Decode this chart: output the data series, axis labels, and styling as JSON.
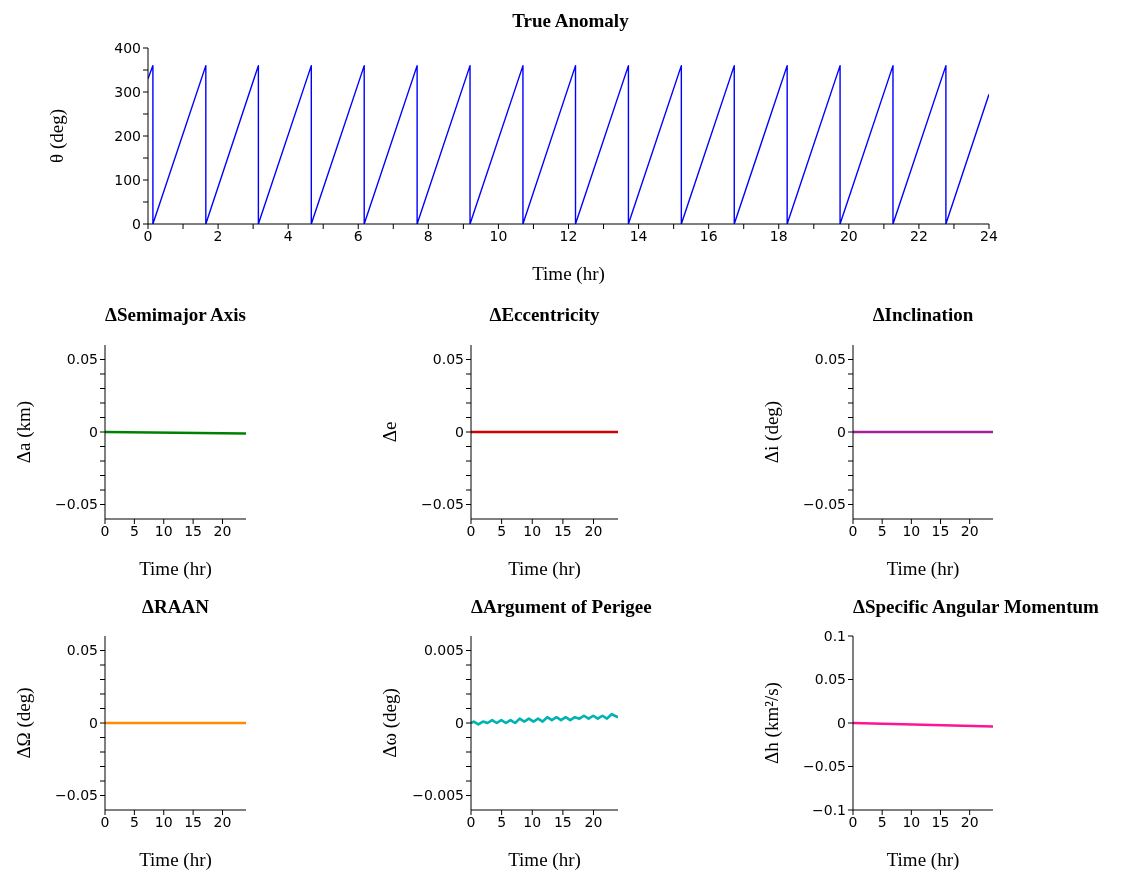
{
  "chart_data": [
    {
      "type": "line",
      "title": "True Anomaly",
      "xlabel": "Time (hr)",
      "ylabel": "θ (deg)",
      "marker": "none",
      "line_style": "solid",
      "series": [
        {
          "color": "#0000ff",
          "x": [
            0,
            0.14,
            0.14,
            1.65,
            1.65,
            3.15,
            3.15,
            4.66,
            4.66,
            6.17,
            6.17,
            7.68,
            7.68,
            9.19,
            9.19,
            10.7,
            10.7,
            12.2,
            12.2,
            13.71,
            13.71,
            15.22,
            15.22,
            16.73,
            16.73,
            18.24,
            18.24,
            19.75,
            19.75,
            21.26,
            21.26,
            22.77,
            22.77,
            24
          ],
          "values": [
            330,
            360,
            0,
            360,
            0,
            360,
            0,
            360,
            0,
            360,
            0,
            360,
            0,
            360,
            0,
            360,
            0,
            360,
            0,
            360,
            0,
            360,
            0,
            360,
            0,
            360,
            0,
            360,
            0,
            360,
            0,
            360,
            0,
            295
          ]
        }
      ],
      "xlim": [
        0,
        24
      ],
      "xticks": [
        0,
        {
          "value": 1,
          "label": null
        },
        2,
        {
          "value": 3,
          "label": null
        },
        4,
        {
          "value": 5,
          "label": null
        },
        6,
        {
          "value": 7,
          "label": null
        },
        8,
        {
          "value": 9,
          "label": null
        },
        10,
        {
          "value": 11,
          "label": null
        },
        12,
        {
          "value": 13,
          "label": null
        },
        14,
        {
          "value": 15,
          "label": null
        },
        16,
        {
          "value": 17,
          "label": null
        },
        18,
        {
          "value": 19,
          "label": null
        },
        20,
        {
          "value": 21,
          "label": null
        },
        22,
        {
          "value": 23,
          "label": null
        },
        24
      ],
      "ylim": [
        0,
        400
      ],
      "yticks": [
        0,
        {
          "value": 50,
          "label": null
        },
        100,
        {
          "value": 150,
          "label": null
        },
        200,
        {
          "value": 250,
          "label": null
        },
        300,
        {
          "value": 350,
          "label": null
        },
        400
      ]
    },
    {
      "type": "line",
      "title": "ΔSemimajor Axis",
      "xlabel": "Time (hr)",
      "ylabel": "Δa (km)",
      "marker": "none",
      "line_style": "solid",
      "series": [
        {
          "color": "#008000",
          "x": [
            0,
            24
          ],
          "values": [
            0,
            -0.001
          ]
        }
      ],
      "xlim": [
        0,
        24
      ],
      "xticks": [
        0,
        5,
        10,
        15,
        20
      ],
      "ylim": [
        -0.06,
        0.06
      ],
      "yticks": [
        {
          "value": -0.05,
          "label": "−0.05"
        },
        {
          "value": -0.04,
          "label": null
        },
        {
          "value": -0.03,
          "label": null
        },
        {
          "value": -0.02,
          "label": null
        },
        {
          "value": -0.01,
          "label": null
        },
        0,
        {
          "value": 0.01,
          "label": null
        },
        {
          "value": 0.02,
          "label": null
        },
        {
          "value": 0.03,
          "label": null
        },
        {
          "value": 0.04,
          "label": null
        },
        0.05
      ]
    },
    {
      "type": "line",
      "title": "ΔEccentricity",
      "xlabel": "Time (hr)",
      "ylabel": "Δe",
      "marker": "none",
      "line_style": "solid",
      "series": [
        {
          "color": "#d40000",
          "x": [
            0,
            24
          ],
          "values": [
            0,
            0
          ]
        }
      ],
      "xlim": [
        0,
        24
      ],
      "xticks": [
        0,
        5,
        10,
        15,
        20
      ],
      "ylim": [
        -0.06,
        0.06
      ],
      "yticks": [
        {
          "value": -0.05,
          "label": "−0.05"
        },
        {
          "value": -0.04,
          "label": null
        },
        {
          "value": -0.03,
          "label": null
        },
        {
          "value": -0.02,
          "label": null
        },
        {
          "value": -0.01,
          "label": null
        },
        0,
        {
          "value": 0.01,
          "label": null
        },
        {
          "value": 0.02,
          "label": null
        },
        {
          "value": 0.03,
          "label": null
        },
        {
          "value": 0.04,
          "label": null
        },
        0.05
      ]
    },
    {
      "type": "line",
      "title": "ΔInclination",
      "xlabel": "Time (hr)",
      "ylabel": "Δi (deg)",
      "marker": "none",
      "line_style": "solid",
      "series": [
        {
          "color": "#a020a0",
          "x": [
            0,
            24
          ],
          "values": [
            0,
            0
          ]
        }
      ],
      "xlim": [
        0,
        24
      ],
      "xticks": [
        0,
        5,
        10,
        15,
        20
      ],
      "ylim": [
        -0.06,
        0.06
      ],
      "yticks": [
        {
          "value": -0.05,
          "label": "−0.05"
        },
        {
          "value": -0.04,
          "label": null
        },
        {
          "value": -0.03,
          "label": null
        },
        {
          "value": -0.02,
          "label": null
        },
        {
          "value": -0.01,
          "label": null
        },
        0,
        {
          "value": 0.01,
          "label": null
        },
        {
          "value": 0.02,
          "label": null
        },
        {
          "value": 0.03,
          "label": null
        },
        {
          "value": 0.04,
          "label": null
        },
        0.05
      ]
    },
    {
      "type": "line",
      "title": "ΔRAAN",
      "xlabel": "Time (hr)",
      "ylabel": "ΔΩ (deg)",
      "marker": "none",
      "line_style": "solid",
      "series": [
        {
          "color": "#ff8c00",
          "x": [
            0,
            24
          ],
          "values": [
            0,
            0
          ]
        }
      ],
      "xlim": [
        0,
        24
      ],
      "xticks": [
        0,
        5,
        10,
        15,
        20
      ],
      "ylim": [
        -0.06,
        0.06
      ],
      "yticks": [
        {
          "value": -0.05,
          "label": "−0.05"
        },
        {
          "value": -0.04,
          "label": null
        },
        {
          "value": -0.03,
          "label": null
        },
        {
          "value": -0.02,
          "label": null
        },
        {
          "value": -0.01,
          "label": null
        },
        0,
        {
          "value": 0.01,
          "label": null
        },
        {
          "value": 0.02,
          "label": null
        },
        {
          "value": 0.03,
          "label": null
        },
        {
          "value": 0.04,
          "label": null
        },
        0.05
      ]
    },
    {
      "type": "line",
      "title": "ΔArgument of Perigee",
      "xlabel": "Time (hr)",
      "ylabel": "Δω (deg)",
      "marker": "none",
      "line_style": "solid",
      "series": [
        {
          "color": "#00b3b3",
          "x": [
            0,
            0.45,
            1.2,
            1.95,
            2.7,
            3.45,
            4.2,
            4.95,
            5.7,
            6.45,
            7.2,
            7.95,
            8.7,
            9.45,
            10.2,
            10.95,
            11.7,
            12.45,
            13.2,
            13.95,
            14.7,
            15.45,
            16.2,
            16.95,
            17.7,
            18.45,
            19.2,
            19.95,
            20.7,
            21.45,
            22.2,
            22.95,
            24
          ],
          "values": [
            0,
            0.0001,
            -0.0001,
            0.0001,
            0,
            0.0002,
            0,
            0.0002,
            0,
            0.0002,
            0,
            0.0003,
            0.0001,
            0.0003,
            0.0001,
            0.0003,
            0.0001,
            0.0004,
            0.0002,
            0.0004,
            0.0002,
            0.0004,
            0.0002,
            0.0004,
            0.0003,
            0.0005,
            0.0003,
            0.0005,
            0.0003,
            0.0005,
            0.0003,
            0.0006,
            0.0004
          ]
        }
      ],
      "xlim": [
        0,
        24
      ],
      "xticks": [
        0,
        5,
        10,
        15,
        20
      ],
      "ylim": [
        -0.006,
        0.006
      ],
      "yticks": [
        {
          "value": -0.005,
          "label": "−0.005"
        },
        {
          "value": -0.004,
          "label": null
        },
        {
          "value": -0.003,
          "label": null
        },
        {
          "value": -0.002,
          "label": null
        },
        {
          "value": -0.001,
          "label": null
        },
        0,
        {
          "value": 0.001,
          "label": null
        },
        {
          "value": 0.002,
          "label": null
        },
        {
          "value": 0.003,
          "label": null
        },
        {
          "value": 0.004,
          "label": null
        },
        0.005
      ]
    },
    {
      "type": "line",
      "title": "ΔSpecific Angular Momentum",
      "xlabel": "Time (hr)",
      "ylabel": "Δh (km²/s)",
      "marker": "none",
      "line_style": "solid",
      "series": [
        {
          "color": "#ff1493",
          "x": [
            0,
            24
          ],
          "values": [
            0,
            -0.004
          ]
        }
      ],
      "xlim": [
        0,
        24
      ],
      "xticks": [
        0,
        5,
        10,
        15,
        20
      ],
      "ylim": [
        -0.1,
        0.1
      ],
      "yticks": [
        {
          "value": -0.1,
          "label": "−0.1"
        },
        {
          "value": -0.05,
          "label": "−0.05"
        },
        0,
        0.05,
        0.1
      ]
    }
  ]
}
